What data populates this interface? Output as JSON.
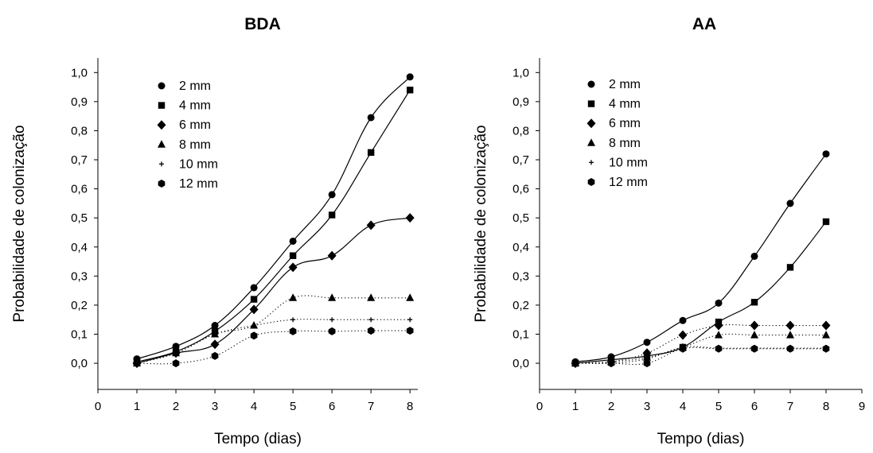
{
  "figure": {
    "background": "#ffffff",
    "line_color": "#000000"
  },
  "chart_data": [
    {
      "type": "line",
      "title": "BDA",
      "xlabel": "Tempo (dias)",
      "ylabel": "Probabilidade de colonização",
      "xlim": [
        0,
        8.2
      ],
      "ylim": [
        -0.09,
        1.05
      ],
      "xticks": [
        "0",
        "1",
        "2",
        "3",
        "4",
        "5",
        "6",
        "7",
        "8"
      ],
      "yticks": [
        "0,0",
        "0,1",
        "0,2",
        "0,3",
        "0,4",
        "0,5",
        "0,6",
        "0,7",
        "0,8",
        "0,9",
        "1,0"
      ],
      "grid": false,
      "legend_position": "top-left",
      "x": [
        1,
        2,
        3,
        4,
        5,
        6,
        7,
        8
      ],
      "series": [
        {
          "name": "2 mm",
          "marker": "circle",
          "line": "solid",
          "values": [
            0.015,
            0.058,
            0.13,
            0.26,
            0.42,
            0.58,
            0.845,
            0.985
          ]
        },
        {
          "name": "4 mm",
          "marker": "square",
          "line": "solid",
          "values": [
            0.005,
            0.04,
            0.11,
            0.22,
            0.37,
            0.51,
            0.725,
            0.94
          ]
        },
        {
          "name": "6 mm",
          "marker": "diamond",
          "line": "solid",
          "values": [
            0.0,
            0.035,
            0.065,
            0.185,
            0.33,
            0.37,
            0.475,
            0.5
          ]
        },
        {
          "name": "8 mm",
          "marker": "triangle",
          "line": "dotted",
          "values": [
            0.0,
            0.035,
            0.1,
            0.13,
            0.225,
            0.225,
            0.225,
            0.225
          ]
        },
        {
          "name": "10 mm",
          "marker": "plus",
          "line": "dotted",
          "values": [
            0.0,
            0.035,
            0.1,
            0.13,
            0.15,
            0.15,
            0.15,
            0.15
          ]
        },
        {
          "name": "12 mm",
          "marker": "hexagon",
          "line": "dotted",
          "values": [
            0.0,
            0.0,
            0.025,
            0.095,
            0.11,
            0.11,
            0.112,
            0.112
          ]
        }
      ]
    },
    {
      "type": "line",
      "title": "AA",
      "xlabel": "Tempo (dias)",
      "ylabel": "Probabilidade de colonização",
      "xlim": [
        0,
        9
      ],
      "ylim": [
        -0.09,
        1.05
      ],
      "xticks": [
        "0",
        "1",
        "2",
        "3",
        "4",
        "5",
        "6",
        "7",
        "8",
        "9"
      ],
      "yticks": [
        "0,0",
        "0,1",
        "0,2",
        "0,3",
        "0,4",
        "0,5",
        "0,6",
        "0,7",
        "0,8",
        "0,9",
        "1,0"
      ],
      "grid": false,
      "legend_position": "top-left",
      "x": [
        1,
        2,
        3,
        4,
        5,
        6,
        7,
        8
      ],
      "series": [
        {
          "name": "2 mm",
          "marker": "circle",
          "line": "solid",
          "values": [
            0.005,
            0.022,
            0.072,
            0.147,
            0.207,
            0.368,
            0.55,
            0.72
          ]
        },
        {
          "name": "4 mm",
          "marker": "square",
          "line": "solid",
          "values": [
            0.0,
            0.012,
            0.025,
            0.055,
            0.142,
            0.21,
            0.33,
            0.487
          ]
        },
        {
          "name": "6 mm",
          "marker": "diamond",
          "line": "dotted",
          "values": [
            0.0,
            0.005,
            0.035,
            0.097,
            0.13,
            0.13,
            0.13,
            0.13
          ]
        },
        {
          "name": "8 mm",
          "marker": "triangle",
          "line": "dotted",
          "values": [
            0.0,
            0.005,
            0.02,
            0.055,
            0.097,
            0.097,
            0.097,
            0.097
          ]
        },
        {
          "name": "10 mm",
          "marker": "plus",
          "line": "dotted",
          "values": [
            0.0,
            0.0,
            0.015,
            0.055,
            0.052,
            0.052,
            0.052,
            0.052
          ]
        },
        {
          "name": "12 mm",
          "marker": "hexagon",
          "line": "dotted",
          "values": [
            0.0,
            0.0,
            0.0,
            0.05,
            0.05,
            0.05,
            0.05,
            0.05
          ]
        }
      ]
    }
  ]
}
